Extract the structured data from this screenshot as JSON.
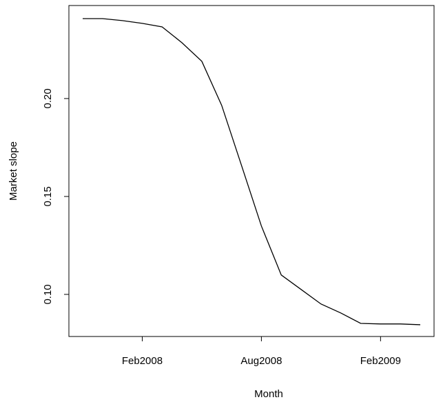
{
  "chart_data": {
    "type": "line",
    "x_label": "Month",
    "y_label": "Market slope",
    "x": [
      "2007-11",
      "2007-12",
      "2008-01",
      "2008-02",
      "2008-03",
      "2008-04",
      "2008-05",
      "2008-06",
      "2008-07",
      "2008-08",
      "2008-09",
      "2008-10",
      "2008-11",
      "2008-12",
      "2009-01",
      "2009-02",
      "2009-03",
      "2009-04"
    ],
    "series": [
      {
        "color": "#000000",
        "values": [
          0.2408,
          0.2408,
          0.2398,
          0.2384,
          0.2366,
          0.2285,
          0.219,
          0.1965,
          0.1658,
          0.1349,
          0.1099,
          0.1025,
          0.0951,
          0.0905,
          0.0852,
          0.0849,
          0.0849,
          0.0845
        ]
      }
    ],
    "xticks": [
      {
        "value": "2008-02",
        "label": "Feb2008"
      },
      {
        "value": "2008-08",
        "label": "Aug2008"
      },
      {
        "value": "2009-02",
        "label": "Feb2009"
      }
    ],
    "ylim": [
      0.0785,
      0.2475
    ],
    "yticks": [
      {
        "value": 0.1,
        "label": "0.10"
      },
      {
        "value": 0.15,
        "label": "0.15"
      },
      {
        "value": 0.2,
        "label": "0.20"
      }
    ]
  }
}
